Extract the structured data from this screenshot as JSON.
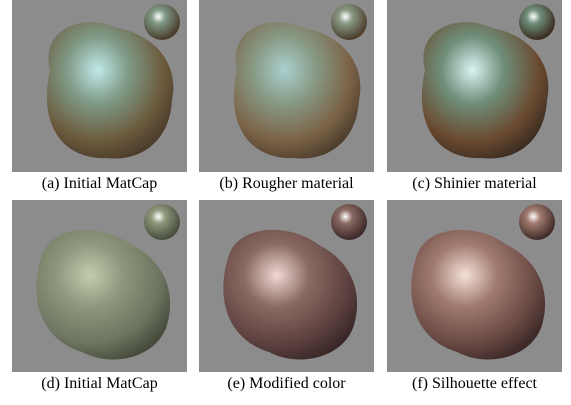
{
  "panels": [
    {
      "caption": "(a) Initial MatCap"
    },
    {
      "caption": "(b) Rougher material"
    },
    {
      "caption": "(c) Shinier material"
    },
    {
      "caption": "(d) Initial MatCap"
    },
    {
      "caption": "(e) Modified color"
    },
    {
      "caption": "(f) Silhouette effect"
    }
  ]
}
